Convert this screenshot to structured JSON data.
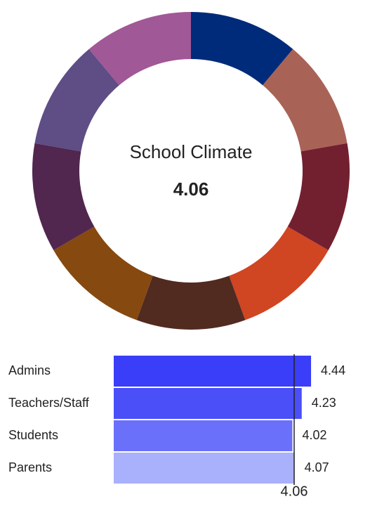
{
  "chart_data": [
    {
      "type": "donut",
      "title": "School Climate",
      "center_value": 4.06,
      "values": [
        1,
        1,
        1,
        1,
        1,
        1,
        1,
        1,
        1
      ],
      "colors": [
        "#002b7a",
        "#a86356",
        "#722030",
        "#d04522",
        "#512a20",
        "#86490f",
        "#51264f",
        "#5f4d85",
        "#a05896"
      ]
    },
    {
      "type": "hbar",
      "categories": [
        "Admins",
        "Teachers/Staff",
        "Students",
        "Parents"
      ],
      "values": [
        4.44,
        4.23,
        4.02,
        4.07
      ],
      "colors": [
        "#3a3ef8",
        "#4a4ff8",
        "#6b70fa",
        "#a9b0fc"
      ],
      "xlim": [
        0,
        5
      ],
      "reference_line": 4.06
    }
  ]
}
